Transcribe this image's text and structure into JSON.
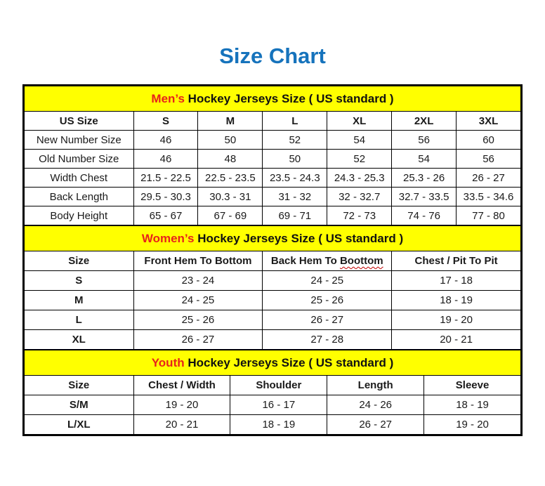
{
  "page": {
    "title": "Size Chart"
  },
  "colors": {
    "title_blue": "#1673bc",
    "accent_red": "#e8231a",
    "band_yellow": "#ffff00",
    "border_black": "#000000"
  },
  "sections": [
    {
      "id": "mens",
      "heading_accent": "Men’s",
      "heading_rest": " Hockey Jerseys Size ( US standard )",
      "columns": [
        "US Size",
        "S",
        "M",
        "L",
        "XL",
        "2XL",
        "3XL"
      ],
      "rows": [
        {
          "label": "New Number Size",
          "values": [
            "46",
            "50",
            "52",
            "54",
            "56",
            "60"
          ]
        },
        {
          "label": "Old Number Size",
          "values": [
            "46",
            "48",
            "50",
            "52",
            "54",
            "56"
          ]
        },
        {
          "label": "Width Chest",
          "values": [
            "21.5 - 22.5",
            "22.5 - 23.5",
            "23.5 - 24.3",
            "24.3 - 25.3",
            "25.3 - 26",
            "26 - 27"
          ]
        },
        {
          "label": "Back Length",
          "values": [
            "29.5 - 30.3",
            "30.3 - 31",
            "31 - 32",
            "32 - 32.7",
            "32.7 - 33.5",
            "33.5 - 34.6"
          ]
        },
        {
          "label": "Body Height",
          "values": [
            "65 - 67",
            "67 - 69",
            "69 - 71",
            "72 - 73",
            "74 - 76",
            "77 - 80"
          ]
        }
      ]
    },
    {
      "id": "womens",
      "heading_accent": "Women’s",
      "heading_rest": " Hockey Jerseys Size ( US standard )",
      "columns": [
        "Size",
        "Front Hem To Bottom",
        "Back Hem To Boottom",
        "Chest / Pit To Pit"
      ],
      "squiggle_word": "Boottom",
      "rows": [
        {
          "label": "S",
          "values": [
            "23 - 24",
            "24 - 25",
            "17 - 18"
          ]
        },
        {
          "label": "M",
          "values": [
            "24 - 25",
            "25 - 26",
            "18 - 19"
          ]
        },
        {
          "label": "L",
          "values": [
            "25 - 26",
            "26 - 27",
            "19 - 20"
          ]
        },
        {
          "label": "XL",
          "values": [
            "26 - 27",
            "27 - 28",
            "20 - 21"
          ]
        }
      ]
    },
    {
      "id": "youth",
      "heading_accent": "Youth",
      "heading_rest": " Hockey Jerseys Size ( US standard )",
      "columns": [
        "Size",
        "Chest / Width",
        "Shoulder",
        "Length",
        "Sleeve"
      ],
      "rows": [
        {
          "label": "S/M",
          "values": [
            "19 - 20",
            "16 - 17",
            "24 - 26",
            "18 - 19"
          ]
        },
        {
          "label": "L/XL",
          "values": [
            "20 - 21",
            "18 - 19",
            "26 - 27",
            "19 - 20"
          ]
        }
      ]
    }
  ]
}
